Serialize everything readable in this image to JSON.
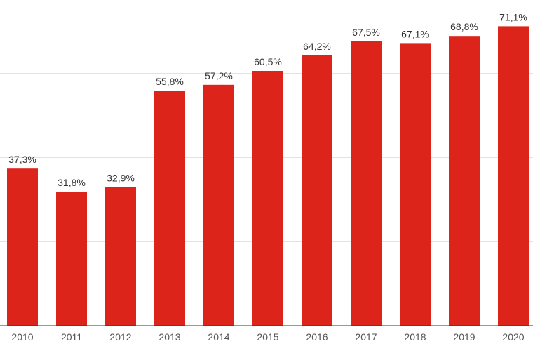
{
  "chart_data": {
    "type": "bar",
    "categories": [
      "2010",
      "2011",
      "2012",
      "2013",
      "2014",
      "2015",
      "2016",
      "2017",
      "2018",
      "2019",
      "2020"
    ],
    "values": [
      37.3,
      31.8,
      32.9,
      55.8,
      57.2,
      60.5,
      64.2,
      67.5,
      67.1,
      68.8,
      71.1
    ],
    "data_labels": [
      "37,3%",
      "31,8%",
      "32,9%",
      "55,8%",
      "57,2%",
      "60,5%",
      "64,2%",
      "67,5%",
      "67,1%",
      "68,8%",
      "71,1%"
    ],
    "ylim": [
      0,
      80
    ],
    "gridlines": [
      20,
      40,
      60
    ],
    "grid": true,
    "bar_color": "#dc241b",
    "title": "",
    "xlabel": "",
    "ylabel": ""
  }
}
